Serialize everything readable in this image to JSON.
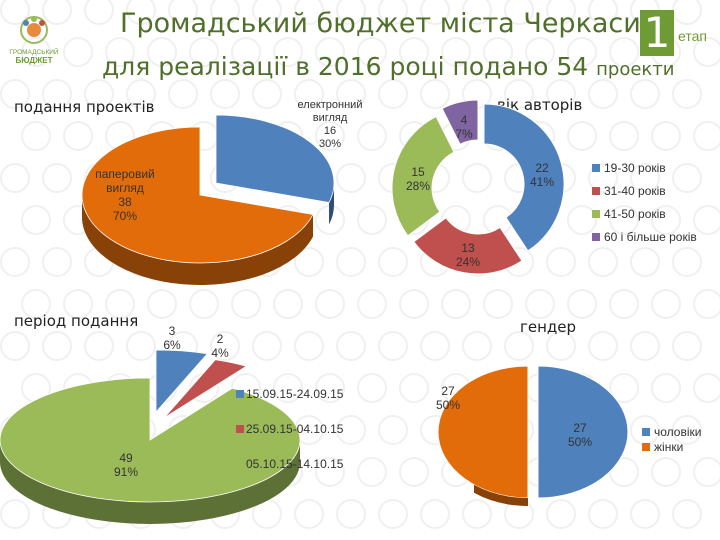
{
  "header": {
    "title_line1": "Громадський бюджет міста Черкаси",
    "title_line2": "для реалізації в 2016 році подано 54",
    "title_line2_tail": "проекти",
    "stage_number": "1",
    "stage_label": "етап",
    "logo_text_line1": "ГРОМАДСЬКИЙ",
    "logo_text_line2": "БЮДЖЕТ"
  },
  "colors": {
    "blue": "#4f81bd",
    "blue_dark": "#2f4f77",
    "orange": "#e36c0a",
    "orange_dark": "#8e4306",
    "red": "#c0504d",
    "red_dark": "#7a2f2d",
    "green": "#9bbb59",
    "green_dark": "#5f7a30",
    "purple": "#8064a2",
    "title_green": "#4f6f2a"
  },
  "chart_data": [
    {
      "type": "pie",
      "title": "подання проектів",
      "slices": [
        {
          "label_lines": [
            "електронний",
            "вигляд",
            "16",
            "30%"
          ],
          "value": 16,
          "percent": "30%",
          "color": "#4f81bd"
        },
        {
          "label_lines": [
            "паперовий",
            "вигляд",
            "38",
            "70%"
          ],
          "value": 38,
          "percent": "70%",
          "color": "#e36c0a"
        }
      ]
    },
    {
      "type": "pie",
      "subtype": "doughnut",
      "title": "вік авторів",
      "slices": [
        {
          "name": "19-30 років",
          "value": 22,
          "percent": "41%",
          "color": "#4f81bd"
        },
        {
          "name": "31-40 років",
          "value": 13,
          "percent": "24%",
          "color": "#c0504d"
        },
        {
          "name": "41-50 років",
          "value": 15,
          "percent": "28%",
          "color": "#9bbb59"
        },
        {
          "name": "60 і більше років",
          "value": 4,
          "percent": "7%",
          "color": "#8064a2"
        }
      ],
      "legend": [
        "19-30 років",
        "31-40 років",
        "41-50 років",
        "60 і більше років"
      ],
      "legend_position": "right"
    },
    {
      "type": "pie",
      "title": "період подання",
      "slices": [
        {
          "name": "15.09.15-24.09.15",
          "value": 3,
          "percent": "6%",
          "color": "#4f81bd"
        },
        {
          "name": "25.09.15-04.10.15",
          "value": 2,
          "percent": "4%",
          "color": "#c0504d"
        },
        {
          "name": "05.10.15-14.10.15",
          "value": 49,
          "percent": "91%",
          "color": "#9bbb59"
        }
      ],
      "legend": [
        "15.09.15-24.09.15",
        "25.09.15-04.10.15",
        "05.10.15-14.10.15"
      ],
      "legend_position": "right"
    },
    {
      "type": "pie",
      "title": "гендер",
      "slices": [
        {
          "name": "чоловіки",
          "value": 27,
          "percent": "50%",
          "color": "#4f81bd"
        },
        {
          "name": "жінки",
          "value": 27,
          "percent": "50%",
          "color": "#e36c0a"
        }
      ],
      "legend": [
        "чоловіки",
        "жінки"
      ],
      "legend_position": "right"
    }
  ]
}
